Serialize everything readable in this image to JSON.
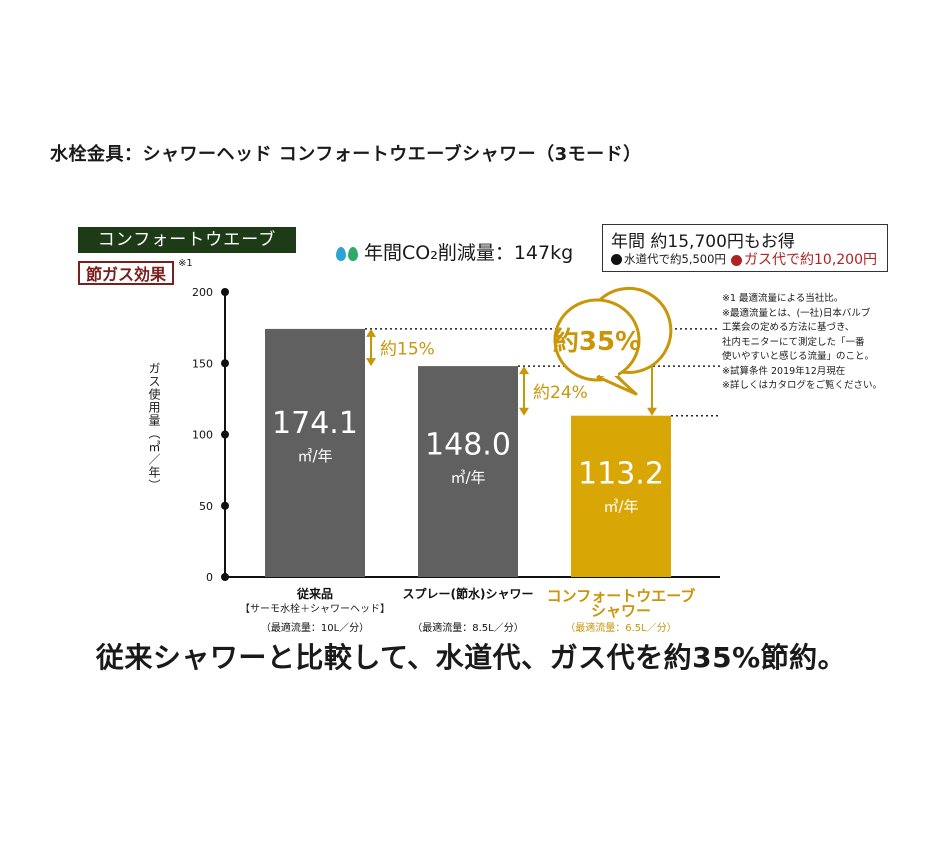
{
  "page_title": "水栓金具：シャワーヘッド コンフォートウエーブシャワー（3モード）",
  "brand_label": "コンフォートウエーブ",
  "effect_label": "節ガス効果",
  "effect_note_mark": "※1",
  "co2": {
    "text": "年間CO₂削減量：147kg",
    "drop_colors": [
      "#2aa4d6",
      "#2fa86a"
    ]
  },
  "savings": {
    "title": "年間 約15,700円もお得",
    "water": "水道代で約5,500円",
    "gas": "ガス代で約10,200円",
    "water_dot_color": "#111111",
    "gas_dot_color": "#b02323"
  },
  "notes": [
    "※1 最適流量による当社比。",
    "※最適流量とは、(一社)日本バルブ",
    "  工業会の定める方法に基づき、",
    "  社内モニターにて測定した「一番",
    "  使いやすいと感じる流量」のこと。",
    "※試算条件 2019年12月現在",
    "※詳しくはカタログをご覧ください。"
  ],
  "tagline": "従来シャワーと比較して、水道代、ガス代を約35%節約。",
  "chart_data": {
    "type": "bar",
    "ylabel": "ガス使用量（㎥／年）",
    "ylim": [
      0,
      200
    ],
    "yticks": [
      0,
      50,
      100,
      150,
      200
    ],
    "unit": "㎥/年",
    "categories": [
      {
        "name": "従来品",
        "sub": "【サーモ水栓＋シャワーヘッド】",
        "flow": "（最適流量：10L／分）"
      },
      {
        "name": "スプレー(節水)シャワー",
        "sub": "",
        "flow": "（最適流量：8.5L／分）"
      },
      {
        "name": "コンフォートウエーブ\nシャワー",
        "sub": "",
        "flow": "（最適流量：6.5L／分）"
      }
    ],
    "values": [
      174.1,
      148.0,
      113.2
    ],
    "value_labels": [
      "174.1",
      "148.0",
      "113.2"
    ],
    "bar_colors": [
      "#606060",
      "#606060",
      "#d9a705"
    ],
    "highlight_text_color": "#c9960a",
    "reductions": [
      {
        "from": 0,
        "to": 1,
        "label": "約15%"
      },
      {
        "from": 1,
        "to": 2,
        "label": "約24%"
      },
      {
        "from": 0,
        "to": 2,
        "label": "約35%"
      }
    ]
  }
}
